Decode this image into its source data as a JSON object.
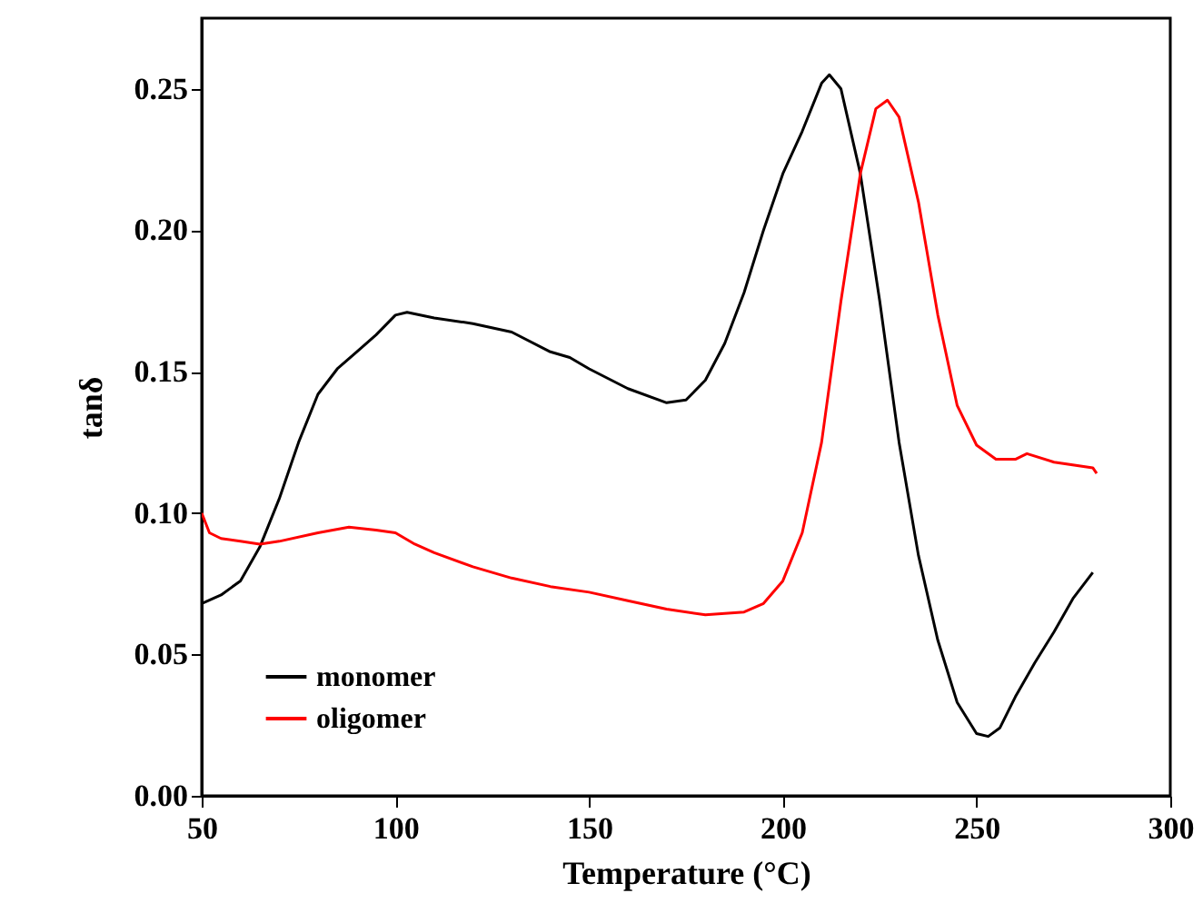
{
  "chart_data": {
    "type": "line",
    "xlabel": "Temperature (°C)",
    "ylabel": "tanδ",
    "xlim": [
      50,
      300
    ],
    "ylim": [
      0,
      0.275
    ],
    "xticks": [
      50,
      100,
      150,
      200,
      250,
      300
    ],
    "yticks": [
      {
        "value": 0,
        "label": "0.00"
      },
      {
        "value": 0.05,
        "label": "0.05"
      },
      {
        "value": 0.1,
        "label": "0.10"
      },
      {
        "value": 0.15,
        "label": "0.15"
      },
      {
        "value": 0.2,
        "label": "0.20"
      },
      {
        "value": 0.25,
        "label": "0.25"
      }
    ],
    "legend": "bottom left",
    "grid": false,
    "line_style": "solid",
    "marker": "none",
    "series": [
      {
        "name": "monomer",
        "color": "#000000",
        "x": [
          50,
          55,
          60,
          65,
          70,
          75,
          80,
          85,
          90,
          95,
          100,
          103,
          110,
          120,
          130,
          140,
          145,
          150,
          160,
          170,
          175,
          180,
          185,
          190,
          195,
          200,
          205,
          210,
          212,
          215,
          220,
          225,
          230,
          235,
          240,
          245,
          250,
          253,
          256,
          260,
          265,
          270,
          275,
          280
        ],
        "values": [
          0.068,
          0.071,
          0.076,
          0.088,
          0.105,
          0.125,
          0.142,
          0.151,
          0.157,
          0.163,
          0.17,
          0.171,
          0.169,
          0.167,
          0.164,
          0.157,
          0.155,
          0.151,
          0.144,
          0.139,
          0.14,
          0.147,
          0.16,
          0.178,
          0.2,
          0.22,
          0.235,
          0.252,
          0.255,
          0.25,
          0.22,
          0.175,
          0.125,
          0.085,
          0.055,
          0.033,
          0.022,
          0.021,
          0.024,
          0.035,
          0.047,
          0.058,
          0.07,
          0.079
        ]
      },
      {
        "name": "oligomer",
        "color": "#ff0000",
        "x": [
          50,
          52,
          55,
          60,
          65,
          70,
          80,
          88,
          95,
          100,
          105,
          110,
          120,
          130,
          140,
          150,
          160,
          170,
          180,
          190,
          195,
          200,
          205,
          210,
          215,
          220,
          224,
          227,
          230,
          235,
          240,
          245,
          250,
          255,
          260,
          263,
          270,
          280,
          281
        ],
        "values": [
          0.1,
          0.093,
          0.091,
          0.09,
          0.089,
          0.09,
          0.093,
          0.095,
          0.094,
          0.093,
          0.089,
          0.086,
          0.081,
          0.077,
          0.074,
          0.072,
          0.069,
          0.066,
          0.064,
          0.065,
          0.068,
          0.076,
          0.093,
          0.125,
          0.175,
          0.22,
          0.243,
          0.246,
          0.24,
          0.21,
          0.17,
          0.138,
          0.124,
          0.119,
          0.119,
          0.121,
          0.118,
          0.116,
          0.114
        ]
      }
    ]
  }
}
